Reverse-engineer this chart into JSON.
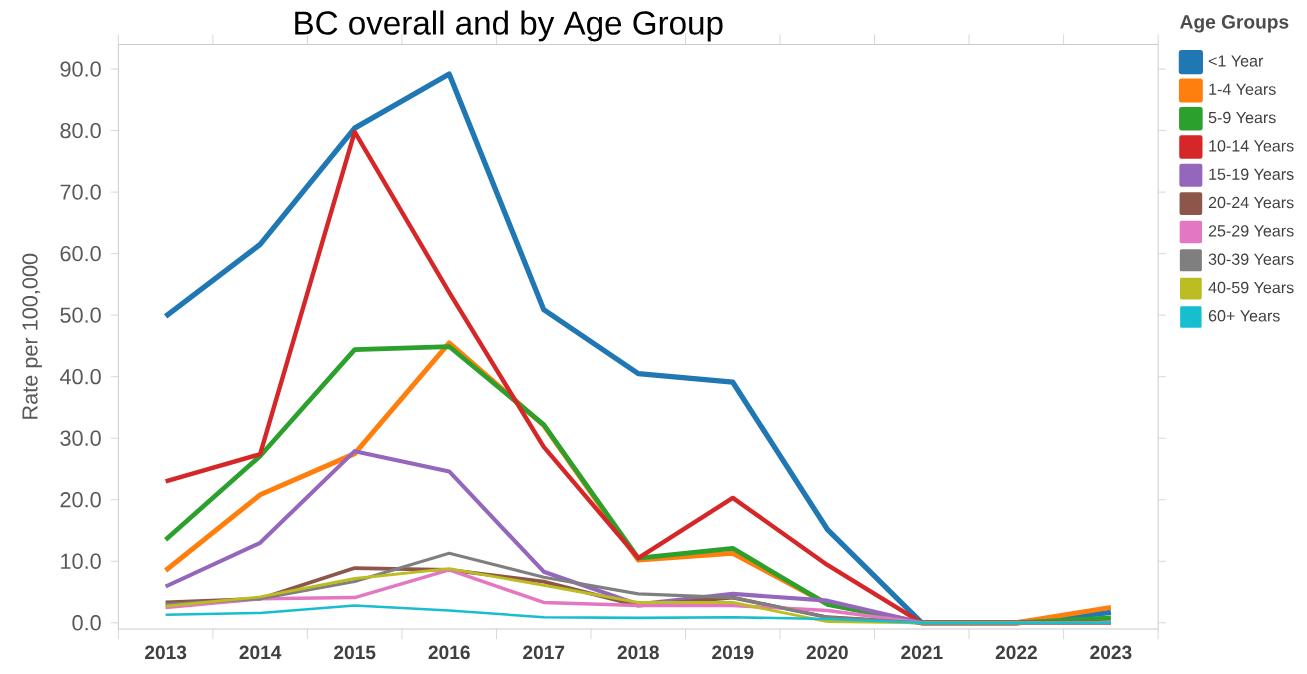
{
  "chart_data": {
    "type": "line",
    "title": "BC overall and by Age Group",
    "ylabel": "Rate per 100,000",
    "legend_title": "Age Groups",
    "legend": "right",
    "grid": false,
    "marker": "none",
    "line_style": "solid",
    "categories": [
      "2013",
      "2014",
      "2015",
      "2016",
      "2017",
      "2018",
      "2019",
      "2020",
      "2021",
      "2022",
      "2023"
    ],
    "ylim": [
      -1,
      94
    ],
    "yticks": [
      {
        "value": 0,
        "label": "0.0"
      },
      {
        "value": 10,
        "label": "10.0"
      },
      {
        "value": 20,
        "label": "20.0"
      },
      {
        "value": 30,
        "label": "30.0"
      },
      {
        "value": 40,
        "label": "40.0"
      },
      {
        "value": 50,
        "label": "50.0"
      },
      {
        "value": 60,
        "label": "60.0"
      },
      {
        "value": 70,
        "label": "70.0"
      },
      {
        "value": 80,
        "label": "80.0"
      },
      {
        "value": 90,
        "label": "90.0"
      }
    ],
    "series": [
      {
        "name": "<1 Year",
        "color": "#1f77b4",
        "values": [
          49.8,
          61.5,
          80.4,
          89.2,
          50.9,
          40.5,
          39.1,
          15.2,
          0,
          0,
          1.7
        ]
      },
      {
        "name": "1-4 Years",
        "color": "#ff7f0e",
        "values": [
          8.5,
          20.8,
          27.5,
          45.5,
          32.1,
          10.2,
          11.3,
          3.1,
          0,
          0,
          2.5
        ]
      },
      {
        "name": "5-9 Years",
        "color": "#2ca02c",
        "values": [
          13.5,
          27.1,
          44.4,
          44.9,
          32.2,
          10.5,
          12.1,
          3.0,
          0,
          0,
          0.8
        ]
      },
      {
        "name": "10-14 Years",
        "color": "#d62728",
        "values": [
          23.0,
          27.4,
          79.8,
          53.7,
          28.6,
          10.5,
          20.3,
          9.4,
          0,
          0,
          0
        ]
      },
      {
        "name": "15-19 Years",
        "color": "#9467bd",
        "values": [
          5.9,
          13.0,
          27.9,
          24.6,
          8.3,
          3.0,
          4.7,
          3.6,
          0,
          0,
          0
        ]
      },
      {
        "name": "20-24 Years",
        "color": "#8c564b",
        "values": [
          3.3,
          3.9,
          8.9,
          8.6,
          6.7,
          2.8,
          4.1,
          0.9,
          0,
          0,
          0
        ]
      },
      {
        "name": "25-29 Years",
        "color": "#e377c2",
        "values": [
          2.5,
          3.9,
          4.1,
          8.6,
          3.3,
          2.8,
          2.8,
          2.0,
          0,
          0,
          0
        ]
      },
      {
        "name": "30-39 Years",
        "color": "#7f7f7f",
        "values": [
          3.0,
          3.9,
          6.7,
          11.3,
          7.4,
          4.7,
          4.1,
          0.9,
          0,
          0,
          0
        ]
      },
      {
        "name": "40-59 Years",
        "color": "#bcbd22",
        "values": [
          2.7,
          4.2,
          7.2,
          8.8,
          6.1,
          3.3,
          3.3,
          0.2,
          0,
          0,
          0
        ]
      },
      {
        "name": "60+ Years",
        "color": "#17becf",
        "values": [
          1.3,
          1.6,
          2.8,
          2.0,
          0.9,
          0.8,
          0.9,
          0.6,
          0,
          0,
          0
        ]
      }
    ]
  }
}
